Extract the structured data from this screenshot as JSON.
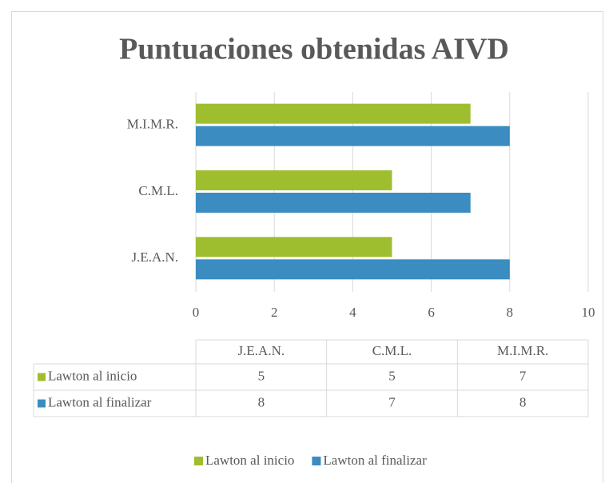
{
  "chart_data": {
    "type": "bar",
    "orientation": "horizontal",
    "title": "Puntuaciones obtenidas AIVD",
    "categories": [
      "J.E.A.N.",
      "C.M.L.",
      "M.I.M.R."
    ],
    "series": [
      {
        "name": "Lawton al inicio",
        "color": "#9fbe2f",
        "values": [
          5,
          5,
          7
        ]
      },
      {
        "name": "Lawton al finalizar",
        "color": "#3a8cc1",
        "values": [
          8,
          7,
          8
        ]
      }
    ],
    "xlim": [
      0,
      10
    ],
    "xticks": [
      0,
      2,
      4,
      6,
      8,
      10
    ],
    "grid": true,
    "legend": "bottom",
    "data_table": true
  }
}
